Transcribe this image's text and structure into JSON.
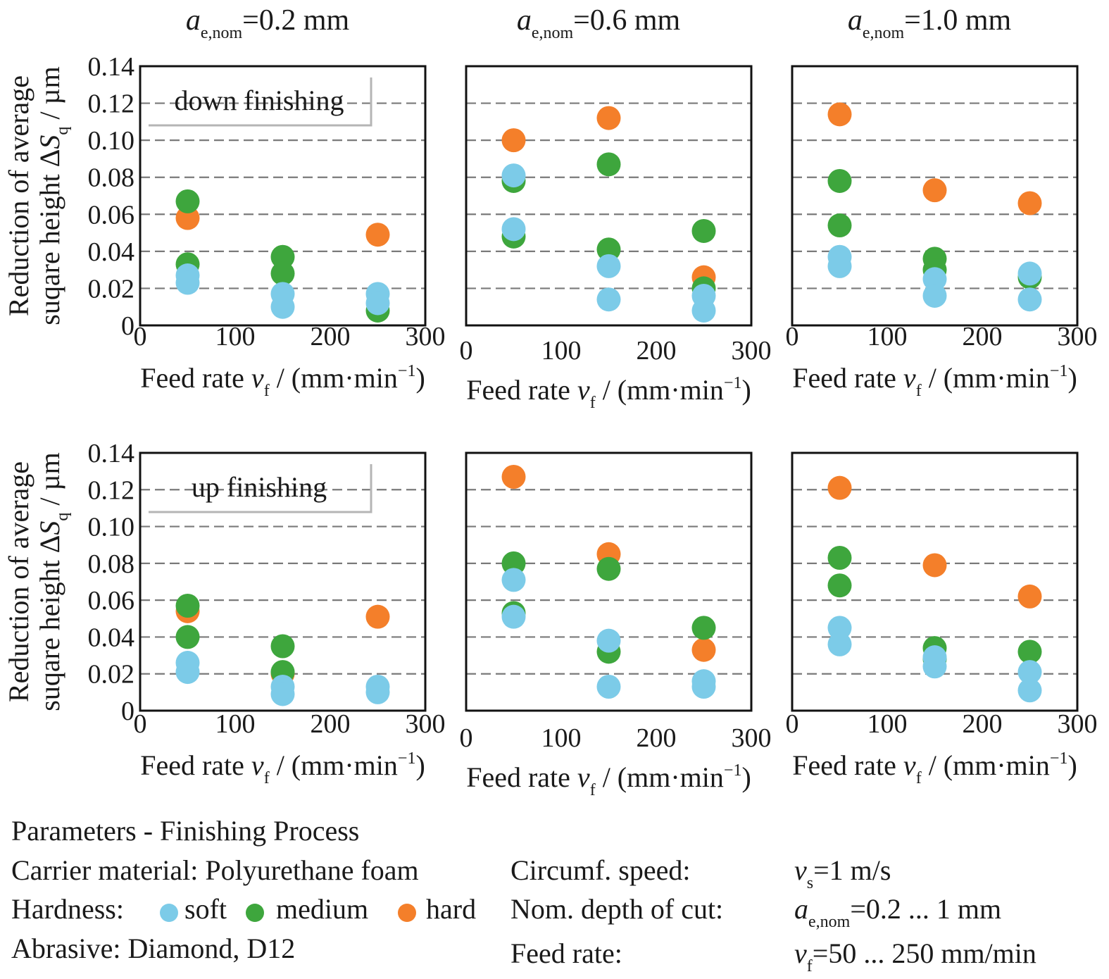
{
  "colors": {
    "soft": "#7ccbe8",
    "medium": "#3ea63d",
    "hard": "#f47f2a"
  },
  "column_titles": [
    {
      "sym": "a",
      "sub": "e,nom",
      "rest": "=0.2 mm"
    },
    {
      "sym": "a",
      "sub": "e,nom",
      "rest": "=0.6 mm"
    },
    {
      "sym": "a",
      "sub": "e,nom",
      "rest": "=1.0 mm"
    }
  ],
  "ylabel": {
    "line1": "Reduction of average",
    "line2": "suqare height ΔS",
    "sub": "q",
    "unit": " / µm"
  },
  "xlabel": {
    "pre": "Feed rate ",
    "sym": "v",
    "sub": "f",
    "mid": " / (mm·min",
    "sup": "−1",
    "post": ")"
  },
  "mode_labels": [
    "down finishing",
    "up finishing"
  ],
  "x_ticks": [
    "0",
    "100",
    "200",
    "300"
  ],
  "y_ticks": [
    "0",
    "0.02",
    "0.04",
    "0.06",
    "0.08",
    "0.10",
    "0.12",
    "0.14"
  ],
  "chart_data": [
    {
      "type": "scatter",
      "mode": "down finishing",
      "a_e_nom": "0.2 mm",
      "xlim": [
        0,
        300
      ],
      "ylim": [
        0,
        0.14
      ],
      "grid": "dashed horizontal",
      "series": [
        {
          "name": "soft",
          "x": [
            50,
            50,
            150,
            150,
            250,
            250
          ],
          "y": [
            0.027,
            0.023,
            0.017,
            0.01,
            0.017,
            0.012
          ]
        },
        {
          "name": "medium",
          "x": [
            50,
            50,
            150,
            150,
            250
          ],
          "y": [
            0.067,
            0.033,
            0.037,
            0.028,
            0.008
          ]
        },
        {
          "name": "hard",
          "x": [
            50,
            250
          ],
          "y": [
            0.058,
            0.049
          ]
        }
      ]
    },
    {
      "type": "scatter",
      "mode": "down finishing",
      "a_e_nom": "0.6 mm",
      "xlim": [
        0,
        300
      ],
      "ylim": [
        0,
        0.14
      ],
      "grid": "dashed horizontal",
      "series": [
        {
          "name": "soft",
          "x": [
            50,
            50,
            150,
            150,
            250,
            250
          ],
          "y": [
            0.081,
            0.052,
            0.032,
            0.014,
            0.016,
            0.008
          ]
        },
        {
          "name": "medium",
          "x": [
            50,
            50,
            150,
            150,
            250,
            250
          ],
          "y": [
            0.078,
            0.048,
            0.087,
            0.041,
            0.051,
            0.02
          ]
        },
        {
          "name": "hard",
          "x": [
            50,
            150,
            250
          ],
          "y": [
            0.1,
            0.112,
            0.026
          ]
        }
      ]
    },
    {
      "type": "scatter",
      "mode": "down finishing",
      "a_e_nom": "1.0 mm",
      "xlim": [
        0,
        300
      ],
      "ylim": [
        0,
        0.14
      ],
      "grid": "dashed horizontal",
      "series": [
        {
          "name": "soft",
          "x": [
            50,
            50,
            150,
            150,
            250,
            250
          ],
          "y": [
            0.037,
            0.032,
            0.025,
            0.016,
            0.028,
            0.014
          ]
        },
        {
          "name": "medium",
          "x": [
            50,
            50,
            150,
            150,
            250
          ],
          "y": [
            0.078,
            0.054,
            0.036,
            0.03,
            0.026
          ]
        },
        {
          "name": "hard",
          "x": [
            50,
            150,
            250
          ],
          "y": [
            0.114,
            0.073,
            0.066
          ]
        }
      ]
    },
    {
      "type": "scatter",
      "mode": "up finishing",
      "a_e_nom": "0.2 mm",
      "xlim": [
        0,
        300
      ],
      "ylim": [
        0,
        0.14
      ],
      "grid": "dashed horizontal",
      "series": [
        {
          "name": "soft",
          "x": [
            50,
            50,
            150,
            150,
            250,
            250
          ],
          "y": [
            0.026,
            0.021,
            0.013,
            0.009,
            0.013,
            0.01
          ]
        },
        {
          "name": "medium",
          "x": [
            50,
            50,
            150,
            150
          ],
          "y": [
            0.057,
            0.04,
            0.035,
            0.021
          ]
        },
        {
          "name": "hard",
          "x": [
            50,
            150,
            250
          ],
          "y": [
            0.054,
            0.02,
            0.051
          ]
        }
      ]
    },
    {
      "type": "scatter",
      "mode": "up finishing",
      "a_e_nom": "0.6 mm",
      "xlim": [
        0,
        300
      ],
      "ylim": [
        0,
        0.14
      ],
      "grid": "dashed horizontal",
      "series": [
        {
          "name": "soft",
          "x": [
            50,
            50,
            150,
            150,
            250,
            250
          ],
          "y": [
            0.071,
            0.051,
            0.038,
            0.013,
            0.016,
            0.013
          ]
        },
        {
          "name": "medium",
          "x": [
            50,
            50,
            150,
            150,
            250
          ],
          "y": [
            0.08,
            0.053,
            0.077,
            0.032,
            0.045
          ]
        },
        {
          "name": "hard",
          "x": [
            50,
            150,
            250
          ],
          "y": [
            0.127,
            0.085,
            0.033
          ]
        }
      ]
    },
    {
      "type": "scatter",
      "mode": "up finishing",
      "a_e_nom": "1.0 mm",
      "xlim": [
        0,
        300
      ],
      "ylim": [
        0,
        0.14
      ],
      "grid": "dashed horizontal",
      "series": [
        {
          "name": "soft",
          "x": [
            50,
            50,
            150,
            150,
            250,
            250
          ],
          "y": [
            0.045,
            0.036,
            0.029,
            0.024,
            0.021,
            0.011
          ]
        },
        {
          "name": "medium",
          "x": [
            50,
            50,
            150,
            150,
            250
          ],
          "y": [
            0.083,
            0.068,
            0.034,
            0.028,
            0.032
          ]
        },
        {
          "name": "hard",
          "x": [
            50,
            150,
            250
          ],
          "y": [
            0.121,
            0.079,
            0.062
          ]
        }
      ]
    }
  ],
  "legend": {
    "title": "Parameters - Finishing Process",
    "carrier": "Carrier material: Polyurethane foam",
    "hardness_label": "Hardness:",
    "hardness_items": [
      "soft",
      "medium",
      "hard"
    ],
    "abrasive": "Abrasive: Diamond, D12",
    "params": [
      {
        "label": "Circumf. speed:",
        "sym": "v",
        "sub": "s",
        "rest": "=1 m/s"
      },
      {
        "label": "Nom. depth of cut:",
        "sym": "a",
        "sub": "e,nom",
        "rest": "=0.2 ... 1 mm"
      },
      {
        "label": "Feed rate:",
        "sym": "v",
        "sub": "f",
        "rest": "=50 ... 250 mm/min"
      }
    ]
  }
}
